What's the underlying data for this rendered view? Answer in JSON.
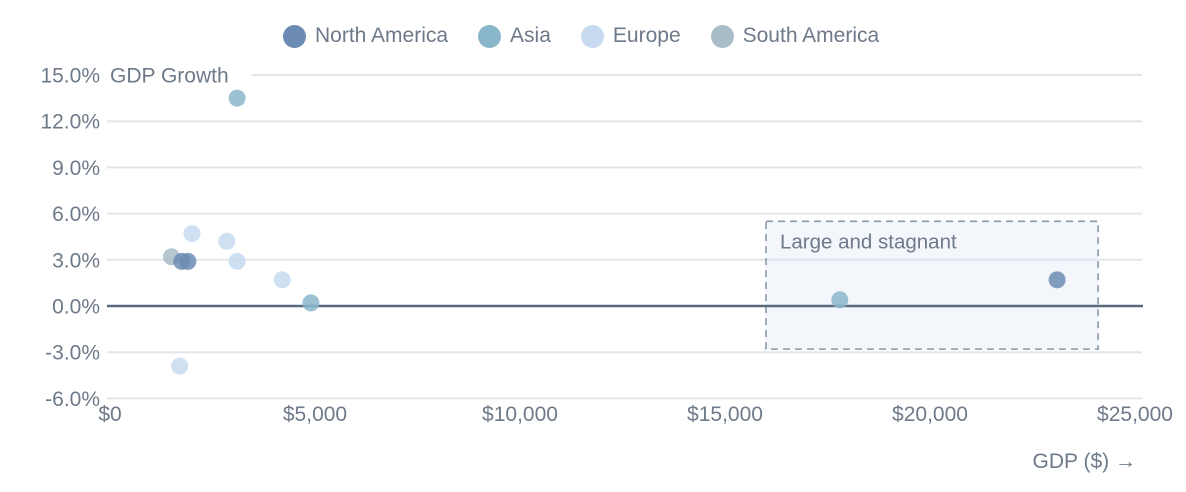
{
  "colors": {
    "north_america": "#6d8cb3",
    "asia": "#8ab6cb",
    "europe": "#c7daf0",
    "south_america": "#a9bdc9",
    "text": "#6e7a8a",
    "gridline": "#e4e5ec",
    "zero_line": "#5a6a7e",
    "annotation_border": "#8a97a8",
    "annotation_fill": "rgba(222,230,242,0.35)"
  },
  "legend": {
    "items": [
      {
        "label": "North America",
        "color": "#6d8cb3"
      },
      {
        "label": "Asia",
        "color": "#8ab6cb"
      },
      {
        "label": "Europe",
        "color": "#c7daf0"
      },
      {
        "label": "South America",
        "color": "#a9bdc9"
      }
    ]
  },
  "chart_data": {
    "type": "scatter",
    "title": "GDP Growth",
    "xlabel": "GDP ($) →",
    "ylabel": "GDP Growth",
    "xlim": [
      0,
      25000
    ],
    "ylim": [
      -6,
      15
    ],
    "grid": true,
    "legend_position": "top",
    "x_ticks": [
      0,
      5000,
      10000,
      15000,
      20000,
      25000
    ],
    "x_tick_labels": [
      "$0",
      "$5,000",
      "$10,000",
      "$15,000",
      "$20,000",
      "$25,000"
    ],
    "y_ticks": [
      15,
      12,
      9,
      6,
      3,
      0,
      -3,
      -6
    ],
    "y_tick_labels": [
      "15.0%",
      "12.0%",
      "9.0%",
      "6.0%",
      "3.0%",
      "0.0%",
      "-3.0%",
      "-6.0%"
    ],
    "series": [
      {
        "name": "South America",
        "color": "#a9bdc9",
        "points": [
          {
            "x": 1500,
            "y": 3.2
          }
        ]
      },
      {
        "name": "Europe",
        "color": "#c7daf0",
        "points": [
          {
            "x": 2000,
            "y": 4.7
          },
          {
            "x": 2850,
            "y": 4.2
          },
          {
            "x": 3100,
            "y": 2.9
          },
          {
            "x": 4200,
            "y": 1.7
          },
          {
            "x": 1700,
            "y": -3.9
          }
        ]
      },
      {
        "name": "Asia",
        "color": "#8ab6cb",
        "points": [
          {
            "x": 3100,
            "y": 13.5
          },
          {
            "x": 4900,
            "y": 0.2
          },
          {
            "x": 17800,
            "y": 0.4
          }
        ]
      },
      {
        "name": "North America",
        "color": "#6d8cb3",
        "points": [
          {
            "x": 1750,
            "y": 2.9
          },
          {
            "x": 1900,
            "y": 2.9
          },
          {
            "x": 23100,
            "y": 1.7
          }
        ]
      }
    ],
    "annotation": {
      "label": "Large and stagnant",
      "x0": 16000,
      "x1": 24100,
      "y0": -2.8,
      "y1": 5.5
    }
  }
}
